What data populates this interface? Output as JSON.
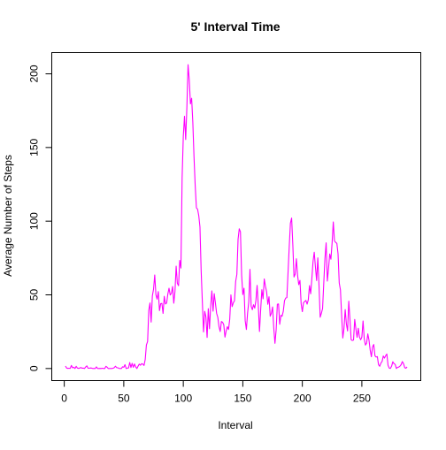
{
  "chart_data": {
    "type": "line",
    "title": "5' Interval Time",
    "x_label": "Interval",
    "y_label": "Average Number of Steps",
    "color": "#ff00ff",
    "xlim": [
      -10.5,
      299.5
    ],
    "ylim": [
      -8.2,
      214.4
    ],
    "xticks": [
      0,
      50,
      100,
      150,
      200,
      250
    ],
    "yticks": [
      0,
      50,
      100,
      150,
      200
    ],
    "x": [
      1,
      2,
      3,
      4,
      5,
      6,
      7,
      8,
      9,
      10,
      11,
      12,
      13,
      14,
      15,
      16,
      17,
      18,
      19,
      20,
      21,
      22,
      23,
      24,
      25,
      26,
      27,
      28,
      29,
      30,
      31,
      32,
      33,
      34,
      35,
      36,
      37,
      38,
      39,
      40,
      41,
      42,
      43,
      44,
      45,
      46,
      47,
      48,
      49,
      50,
      51,
      52,
      53,
      54,
      55,
      56,
      57,
      58,
      59,
      60,
      61,
      62,
      63,
      64,
      65,
      66,
      67,
      68,
      69,
      70,
      71,
      72,
      73,
      74,
      75,
      76,
      77,
      78,
      79,
      80,
      81,
      82,
      83,
      84,
      85,
      86,
      87,
      88,
      89,
      90,
      91,
      92,
      93,
      94,
      95,
      96,
      97,
      98,
      99,
      100,
      101,
      102,
      103,
      104,
      105,
      106,
      107,
      108,
      109,
      110,
      111,
      112,
      113,
      114,
      115,
      116,
      117,
      118,
      119,
      120,
      121,
      122,
      123,
      124,
      125,
      126,
      127,
      128,
      129,
      130,
      131,
      132,
      133,
      134,
      135,
      136,
      137,
      138,
      139,
      140,
      141,
      142,
      143,
      144,
      145,
      146,
      147,
      148,
      149,
      150,
      151,
      152,
      153,
      154,
      155,
      156,
      157,
      158,
      159,
      160,
      161,
      162,
      163,
      164,
      165,
      166,
      167,
      168,
      169,
      170,
      171,
      172,
      173,
      174,
      175,
      176,
      177,
      178,
      179,
      180,
      181,
      182,
      183,
      184,
      185,
      186,
      187,
      188,
      189,
      190,
      191,
      192,
      193,
      194,
      195,
      196,
      197,
      198,
      199,
      200,
      201,
      202,
      203,
      204,
      205,
      206,
      207,
      208,
      209,
      210,
      211,
      212,
      213,
      214,
      215,
      216,
      217,
      218,
      219,
      220,
      221,
      222,
      223,
      224,
      225,
      226,
      227,
      228,
      229,
      230,
      231,
      232,
      233,
      234,
      235,
      236,
      237,
      238,
      239,
      240,
      241,
      242,
      243,
      244,
      245,
      246,
      247,
      248,
      249,
      250,
      251,
      252,
      253,
      254,
      255,
      256,
      257,
      258,
      259,
      260,
      261,
      262,
      263,
      264,
      265,
      266,
      267,
      268,
      269,
      270,
      271,
      272,
      273,
      274,
      275,
      276,
      277,
      278,
      279,
      280,
      281,
      282,
      283,
      284,
      285,
      286,
      287,
      288
    ],
    "values": [
      1.7,
      0.3,
      0.1,
      0.2,
      0.1,
      2.1,
      0.5,
      0.9,
      0,
      1.5,
      0.3,
      0.1,
      0.3,
      0.7,
      0.2,
      0.3,
      0,
      1.1,
      1.8,
      0.2,
      0.2,
      0.4,
      0.3,
      0,
      0,
      0,
      1.1,
      0,
      0,
      0.1,
      0,
      0.2,
      0,
      0,
      1.5,
      0.9,
      0,
      0,
      0,
      0,
      0.2,
      0.6,
      1.6,
      0.6,
      0.5,
      0.1,
      0,
      0,
      1.2,
      0.9,
      2.6,
      0,
      0.3,
      0.4,
      4.1,
      0.7,
      3.5,
      0.8,
      3.1,
      1.1,
      0,
      1.6,
      3,
      2.2,
      3.3,
      3,
      2.1,
      6.1,
      16,
      18.3,
      39.5,
      44.5,
      31.5,
      49.3,
      53.8,
      63.5,
      50,
      47.1,
      52.2,
      39.3,
      44,
      44.2,
      37.4,
      49,
      43.8,
      44.4,
      50.5,
      54.5,
      49.9,
      51,
      55.7,
      44.3,
      52.3,
      69.5,
      57.8,
      56.2,
      73.4,
      68.2,
      129.4,
      157.5,
      171.2,
      155.4,
      177.3,
      206.2,
      195.9,
      179.6,
      183.4,
      167,
      143.5,
      124,
      109.1,
      108.1,
      103.7,
      96,
      66.2,
      45.2,
      24.8,
      38.8,
      35,
      21.1,
      40.6,
      27,
      42.4,
      52.7,
      38.9,
      50.8,
      44.3,
      37.4,
      34.7,
      28.3,
      25.1,
      31.9,
      31.4,
      29.7,
      21.3,
      25.5,
      28.4,
      26.5,
      33.4,
      50,
      42,
      44.6,
      46,
      59.2,
      63.9,
      87.7,
      94.8,
      92.8,
      63.4,
      50.2,
      54.5,
      32.4,
      26.5,
      37.7,
      45.1,
      67.3,
      42.3,
      39.9,
      43.3,
      41,
      46.2,
      56.4,
      42.8,
      25.1,
      40,
      53.5,
      47.3,
      60.8,
      55.8,
      52,
      43.6,
      48.7,
      35.5,
      37.5,
      41.8,
      27.5,
      17.1,
      26.1,
      43.6,
      43.8,
      30,
      36.1,
      35.5,
      38.8,
      46,
      47.8,
      48.1,
      65.3,
      82.9,
      98.7,
      102.1,
      84,
      62.1,
      64.1,
      74.5,
      63.2,
      56.9,
      59.8,
      43.9,
      38.6,
      44.7,
      45.5,
      46.2,
      43.7,
      46.6,
      56.3,
      50.7,
      61.2,
      72.7,
      78.9,
      68.9,
      59.7,
      75.1,
      56.5,
      34.8,
      37.5,
      40.7,
      58,
      74.7,
      85.3,
      59.3,
      67.8,
      77.7,
      74.2,
      85.3,
      99.5,
      86.6,
      85.6,
      84.9,
      77.8,
      58,
      53.4,
      36.3,
      20.7,
      27.4,
      40,
      30.2,
      25.5,
      45.7,
      33.5,
      19.6,
      19,
      19.3,
      33.3,
      26.8,
      21.2,
      27.3,
      21.3,
      19.5,
      21.3,
      32.3,
      20.2,
      15.9,
      17.2,
      23.5,
      19.2,
      12.5,
      8,
      14.7,
      16.3,
      8.7,
      7.8,
      8.1,
      2.6,
      1.5,
      3.7,
      4.8,
      8.5,
      7.1,
      8.7,
      9.8,
      2.2,
      0.3,
      0.1,
      1.6,
      4.6,
      3.3,
      2.8,
      0,
      0.8,
      1,
      1.6,
      2.6,
      4.7,
      3.3,
      0.6,
      0.2,
      1.1
    ]
  }
}
